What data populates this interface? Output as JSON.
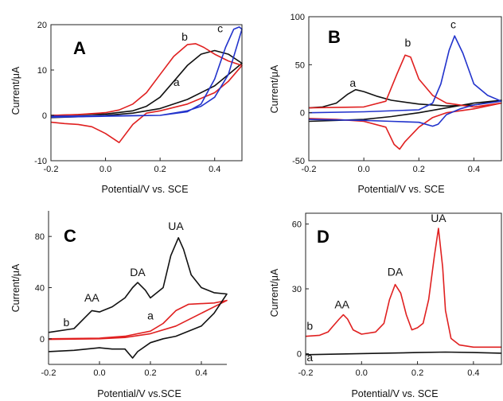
{
  "figure": {
    "panels": [
      {
        "id": "A",
        "label": "A",
        "xlabel": "Potential/V vs. SCE",
        "ylabel": "Current/μA",
        "xlim": [
          -0.2,
          0.5
        ],
        "ylim": [
          -10,
          20
        ],
        "xticks": [
          -0.2,
          0.0,
          0.2,
          0.4
        ],
        "xtick_labels": [
          "-0.2",
          "0.0",
          "0.2",
          "0.4"
        ],
        "yticks": [
          -10,
          0,
          10,
          20
        ],
        "ytick_labels": [
          "-10",
          "0",
          "10",
          "20"
        ],
        "curve_labels": [
          {
            "text": "a",
            "x": 0.26,
            "y": 6.5
          },
          {
            "text": "b",
            "x": 0.29,
            "y": 16.5
          },
          {
            "text": "c",
            "x": 0.42,
            "y": 18.3
          }
        ]
      },
      {
        "id": "B",
        "label": "B",
        "xlabel": "Potential/V vs. SCE",
        "ylabel": "Current/μA",
        "xlim": [
          -0.2,
          0.5
        ],
        "ylim": [
          -50,
          100
        ],
        "xticks": [
          -0.2,
          0.0,
          0.2,
          0.4
        ],
        "xtick_labels": [
          "-0.2",
          "0.0",
          "0.2",
          "0.4"
        ],
        "yticks": [
          -50,
          0,
          50,
          100
        ],
        "ytick_labels": [
          "-50",
          "0",
          "50",
          "100"
        ],
        "curve_labels": [
          {
            "text": "a",
            "x": -0.04,
            "y": 27
          },
          {
            "text": "b",
            "x": 0.16,
            "y": 69
          },
          {
            "text": "c",
            "x": 0.325,
            "y": 88
          }
        ]
      },
      {
        "id": "C",
        "label": "C",
        "xlabel": "Potential/V vs.SCE",
        "ylabel": "Current/μA",
        "xlim": [
          -0.2,
          0.5
        ],
        "ylim": [
          -20,
          100
        ],
        "xticks": [
          -0.2,
          0.0,
          0.2,
          0.4
        ],
        "xtick_labels": [
          "-0.2",
          "0.0",
          "0.2",
          "0.4"
        ],
        "yticks": [
          0,
          40,
          80
        ],
        "ytick_labels": [
          "0",
          "40",
          "80"
        ],
        "curve_labels": [
          {
            "text": "b",
            "x": -0.13,
            "y": 10
          },
          {
            "text": "a",
            "x": 0.2,
            "y": 15
          },
          {
            "text": "AA",
            "x": -0.03,
            "y": 29
          },
          {
            "text": "DA",
            "x": 0.15,
            "y": 49
          },
          {
            "text": "UA",
            "x": 0.3,
            "y": 85
          }
        ]
      },
      {
        "id": "D",
        "label": "D",
        "xlabel": "Potential/V vs. SCE",
        "ylabel": "Current/μA",
        "xlim": [
          -0.2,
          0.5
        ],
        "ylim": [
          -5,
          65
        ],
        "xticks": [
          -0.2,
          0.0,
          0.2,
          0.4
        ],
        "xtick_labels": [
          "-0.2",
          "0.0",
          "0.2",
          "0.4"
        ],
        "yticks": [
          0,
          30,
          60
        ],
        "ytick_labels": [
          "0",
          "30",
          "60"
        ],
        "curve_labels": [
          {
            "text": "b",
            "x": -0.185,
            "y": 11
          },
          {
            "text": "a",
            "x": -0.185,
            "y": -3.5
          },
          {
            "text": "AA",
            "x": -0.07,
            "y": 21
          },
          {
            "text": "DA",
            "x": 0.12,
            "y": 36
          },
          {
            "text": "UA",
            "x": 0.275,
            "y": 61
          }
        ]
      }
    ]
  },
  "chart_data": [
    {
      "type": "line",
      "panel": "A",
      "xlabel": "Potential/V vs. SCE",
      "ylabel": "Current/μA",
      "xlim": [
        -0.2,
        0.5
      ],
      "ylim": [
        -10,
        20
      ],
      "series": [
        {
          "name": "a",
          "color": "#111111",
          "x": [
            -0.2,
            0.0,
            0.1,
            0.15,
            0.2,
            0.25,
            0.3,
            0.35,
            0.4,
            0.45,
            0.5,
            0.45,
            0.4,
            0.3,
            0.2,
            0.1,
            0.0,
            -0.1,
            -0.2
          ],
          "y": [
            0,
            0.3,
            1,
            2,
            4,
            7.5,
            11,
            13.5,
            14.3,
            13.5,
            11.5,
            9,
            6.5,
            3.5,
            1.5,
            0.5,
            0,
            -0.3,
            -0.5
          ]
        },
        {
          "name": "b",
          "color": "#e02020",
          "x": [
            -0.2,
            -0.1,
            0.0,
            0.05,
            0.1,
            0.15,
            0.2,
            0.25,
            0.3,
            0.33,
            0.36,
            0.4,
            0.45,
            0.5,
            0.45,
            0.4,
            0.3,
            0.2,
            0.15,
            0.1,
            0.05,
            0.0,
            -0.05,
            -0.1,
            -0.15,
            -0.2
          ],
          "y": [
            0,
            0.2,
            0.6,
            1.2,
            2.5,
            5,
            9,
            13,
            15.6,
            15.8,
            15,
            13.5,
            12,
            11,
            7.5,
            5,
            2.5,
            1,
            0.5,
            -2,
            -6,
            -4,
            -2.5,
            -2,
            -1.8,
            -1.5
          ]
        },
        {
          "name": "c",
          "color": "#2233cc",
          "x": [
            -0.2,
            0.0,
            0.2,
            0.3,
            0.35,
            0.4,
            0.44,
            0.47,
            0.49,
            0.5,
            0.45,
            0.4,
            0.35,
            0.3,
            0.2,
            0.0,
            -0.2
          ],
          "y": [
            -0.2,
            -0.1,
            0,
            0.8,
            2.5,
            8,
            15,
            19,
            19.5,
            19,
            9,
            4,
            2,
            1,
            0,
            -0.2,
            -0.4
          ]
        }
      ]
    },
    {
      "type": "line",
      "panel": "B",
      "xlabel": "Potential/V vs. SCE",
      "ylabel": "Current/μA",
      "xlim": [
        -0.2,
        0.5
      ],
      "ylim": [
        -50,
        100
      ],
      "series": [
        {
          "name": "a",
          "color": "#111111",
          "x": [
            -0.2,
            -0.15,
            -0.1,
            -0.06,
            -0.03,
            0.0,
            0.05,
            0.1,
            0.2,
            0.3,
            0.4,
            0.5,
            0.4,
            0.3,
            0.2,
            0.1,
            0.0,
            -0.1,
            -0.2
          ],
          "y": [
            5,
            6,
            10,
            19,
            24,
            22,
            17,
            13,
            9,
            7,
            8,
            13,
            10,
            5,
            0,
            -4,
            -7,
            -8,
            -9
          ]
        },
        {
          "name": "b",
          "color": "#e02020",
          "x": [
            -0.2,
            0.0,
            0.08,
            0.12,
            0.15,
            0.17,
            0.2,
            0.25,
            0.3,
            0.4,
            0.5,
            0.4,
            0.3,
            0.25,
            0.2,
            0.15,
            0.13,
            0.11,
            0.08,
            0.0,
            -0.1,
            -0.2
          ],
          "y": [
            5,
            6,
            12,
            40,
            60,
            58,
            35,
            18,
            10,
            6,
            10,
            4,
            0,
            -5,
            -15,
            -30,
            -38,
            -33,
            -15,
            -9,
            -7,
            -6
          ]
        },
        {
          "name": "c",
          "color": "#2233cc",
          "x": [
            -0.2,
            0.0,
            0.2,
            0.25,
            0.28,
            0.31,
            0.33,
            0.36,
            0.4,
            0.45,
            0.5,
            0.4,
            0.35,
            0.3,
            0.27,
            0.25,
            0.2,
            0.1,
            0.0,
            -0.2
          ],
          "y": [
            0,
            1,
            3,
            10,
            30,
            65,
            80,
            62,
            30,
            18,
            12,
            8,
            4,
            -2,
            -12,
            -14,
            -10,
            -9,
            -8,
            -7
          ]
        }
      ]
    },
    {
      "type": "line",
      "panel": "C",
      "xlabel": "Potential/V vs.SCE",
      "ylabel": "Current/μA",
      "xlim": [
        -0.2,
        0.5
      ],
      "ylim": [
        -20,
        100
      ],
      "series": [
        {
          "name": "a",
          "color": "#e02020",
          "x": [
            -0.2,
            0.0,
            0.1,
            0.2,
            0.25,
            0.3,
            0.35,
            0.4,
            0.45,
            0.5,
            0.4,
            0.3,
            0.2,
            0.1,
            0.0,
            -0.2
          ],
          "y": [
            0,
            0.5,
            2,
            6,
            12,
            22,
            27,
            27.5,
            28,
            30,
            20,
            10,
            4,
            1,
            0,
            -0.5
          ]
        },
        {
          "name": "b",
          "color": "#111111",
          "x": [
            -0.2,
            -0.1,
            -0.06,
            -0.03,
            0.0,
            0.05,
            0.1,
            0.13,
            0.15,
            0.18,
            0.2,
            0.25,
            0.28,
            0.31,
            0.33,
            0.36,
            0.4,
            0.45,
            0.5,
            0.45,
            0.4,
            0.3,
            0.25,
            0.2,
            0.15,
            0.13,
            0.1,
            0.05,
            0.0,
            -0.1,
            -0.2
          ],
          "y": [
            5,
            8,
            16,
            22,
            21,
            25,
            32,
            40,
            44,
            38,
            32,
            40,
            65,
            79,
            70,
            50,
            40,
            36,
            35,
            20,
            10,
            2,
            0,
            -3,
            -10,
            -15,
            -8,
            -8,
            -7,
            -9,
            -10
          ]
        }
      ]
    },
    {
      "type": "line",
      "panel": "D",
      "xlabel": "Potential/V vs. SCE",
      "ylabel": "Current/μA",
      "xlim": [
        -0.2,
        0.5
      ],
      "ylim": [
        -5,
        65
      ],
      "series": [
        {
          "name": "a",
          "color": "#111111",
          "x": [
            -0.2,
            0.0,
            0.2,
            0.3,
            0.4,
            0.5
          ],
          "y": [
            -0.5,
            0,
            0.5,
            0.7,
            0.5,
            0.2
          ]
        },
        {
          "name": "b",
          "color": "#e02020",
          "x": [
            -0.2,
            -0.15,
            -0.12,
            -0.1,
            -0.08,
            -0.065,
            -0.05,
            -0.03,
            0.0,
            0.05,
            0.08,
            0.1,
            0.12,
            0.14,
            0.16,
            0.18,
            0.2,
            0.22,
            0.24,
            0.26,
            0.275,
            0.29,
            0.3,
            0.32,
            0.35,
            0.4,
            0.5
          ],
          "y": [
            8,
            8.5,
            10,
            13,
            16,
            18,
            16,
            11,
            9,
            10,
            14,
            25,
            32,
            28,
            18,
            11,
            12,
            14,
            25,
            45,
            58,
            40,
            20,
            7,
            4,
            3,
            3
          ]
        }
      ]
    }
  ]
}
